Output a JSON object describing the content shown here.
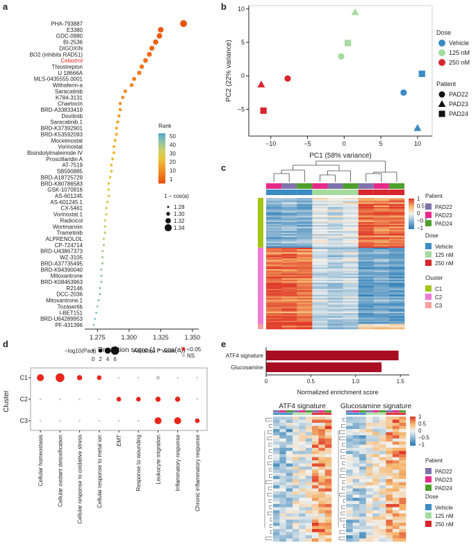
{
  "figure": {
    "panel_labels": [
      "a",
      "b",
      "c",
      "d",
      "e"
    ]
  },
  "chart_data": [
    {
      "panel": "a",
      "type": "scatter",
      "xlabel": "Prediction score (1 − cos(a))",
      "xlim": [
        1.265,
        1.355
      ],
      "xticks": [
        "1.275",
        "1.300",
        "1.325",
        "1.350"
      ],
      "xtick_values": [
        1.275,
        1.3,
        1.325,
        1.35
      ],
      "compounds": [
        "PHA-793887",
        "E3380",
        "GDC-0980",
        "BI-2536",
        "DIGOXIN",
        "BO2 (inhibits RAD51)",
        "Celastrol",
        "Thiostrepton",
        "U 18666A",
        "MLS-0435555.0001",
        "Withaferin-a",
        "Saracatinib",
        "K784-3131",
        "Chaetocin",
        "BRD-A33833419",
        "Dovitinib",
        "Saracatinib.1",
        "BRD-K37392901",
        "BRD-K53592093",
        "Mocetinostat",
        "Vorinostat",
        "Bisindolylmaleimide IV",
        "Proscillaridin A",
        "AT-7519",
        "SB590885",
        "BRD-A18725729",
        "BRD-K80786583",
        "GSK-1070916",
        "AS-601245",
        "AS-601245.1",
        "CX-5461",
        "Vorinostat.1",
        "Radicicol",
        "Wortmannin",
        "Trametinib",
        "ALPRENOLOL",
        "CP-724714",
        "BRD-U43867373",
        "WZ-3105",
        "BRD-A37735495",
        "BRD-K94390040",
        "Mitoxantrone",
        "BRD-K08463963",
        "R2146",
        "DCC-2036",
        "Mitoxantrone.1",
        "Tozasertib",
        "I-BET151",
        "BRD-U64289953",
        "PF-431396"
      ],
      "values": [
        1.343,
        1.325,
        1.324,
        1.321,
        1.318,
        1.316,
        1.313,
        1.31,
        1.308,
        1.304,
        1.302,
        1.297,
        1.295,
        1.293,
        1.293,
        1.292,
        1.291,
        1.29,
        1.29,
        1.289,
        1.288,
        1.288,
        1.287,
        1.286,
        1.286,
        1.285,
        1.284,
        1.284,
        1.284,
        1.283,
        1.282,
        1.282,
        1.281,
        1.281,
        1.281,
        1.28,
        1.28,
        1.279,
        1.279,
        1.279,
        1.278,
        1.278,
        1.278,
        1.277,
        1.277,
        1.276,
        1.275,
        1.274,
        1.273,
        1.272
      ],
      "highlight": "Celastrol",
      "highlight_color": "#e8261c",
      "rank_legend_title": "Rank",
      "rank_ticks": [
        "50",
        "40",
        "30",
        "20",
        "10",
        "1"
      ],
      "rank_colors": [
        "#5aa9c4",
        "#9cc7a0",
        "#d9cf58",
        "#f0b030",
        "#f07b1c",
        "#e85a14"
      ],
      "size_legend_title": "1 − cos(a)",
      "size_legend": [
        "1.28",
        "1.30",
        "1.32",
        "1.34"
      ]
    },
    {
      "panel": "b",
      "type": "scatter",
      "xlabel": "PC1 (58% variance)",
      "ylabel": "PC2 (22% variance)",
      "xlim": [
        -13,
        12
      ],
      "ylim": [
        -9,
        10.5
      ],
      "xticks": [
        -10,
        -5,
        0,
        5,
        10
      ],
      "yticks": [
        -5,
        0,
        5,
        10
      ],
      "dose_legend_title": "Dose",
      "dose_legend": [
        {
          "label": "Vehicle",
          "color": "#3a8bc2"
        },
        {
          "label": "125 nM",
          "color": "#a6dba0"
        },
        {
          "label": "250 nM",
          "color": "#d7262e"
        }
      ],
      "patient_legend_title": "Patient",
      "patient_legend": [
        {
          "label": "PAD22",
          "shape": "circle"
        },
        {
          "label": "PAD23",
          "shape": "triangle"
        },
        {
          "label": "PAD24",
          "shape": "square"
        }
      ],
      "points": [
        {
          "x": 1.5,
          "y": 9.5,
          "dose": "125 nM",
          "patient": "PAD23"
        },
        {
          "x": 0.5,
          "y": 4.9,
          "dose": "125 nM",
          "patient": "PAD24"
        },
        {
          "x": -0.4,
          "y": 2.9,
          "dose": "125 nM",
          "patient": "PAD22"
        },
        {
          "x": -7.7,
          "y": -0.4,
          "dose": "250 nM",
          "patient": "PAD22"
        },
        {
          "x": -11.3,
          "y": -1.3,
          "dose": "250 nM",
          "patient": "PAD23"
        },
        {
          "x": -11.0,
          "y": -5.2,
          "dose": "250 nM",
          "patient": "PAD24"
        },
        {
          "x": 8.1,
          "y": -2.5,
          "dose": "Vehicle",
          "patient": "PAD22"
        },
        {
          "x": 10.6,
          "y": 0.3,
          "dose": "Vehicle",
          "patient": "PAD24"
        },
        {
          "x": 10.0,
          "y": -7.8,
          "dose": "Vehicle",
          "patient": "PAD23"
        }
      ]
    },
    {
      "panel": "c",
      "type": "heatmap",
      "color_scale": {
        "ticks": [
          "1",
          "0.5",
          "0",
          "−0.5",
          "−1"
        ],
        "low": "#2f7fb8",
        "mid": "#f7f7f7",
        "high": "#e0402a"
      },
      "columns": [
        {
          "patient": "PAD23",
          "dose": "Vehicle"
        },
        {
          "patient": "PAD22",
          "dose": "Vehicle"
        },
        {
          "patient": "PAD24",
          "dose": "Vehicle"
        },
        {
          "patient": "PAD23",
          "dose": "125 nM"
        },
        {
          "patient": "PAD22",
          "dose": "125 nM"
        },
        {
          "patient": "PAD24",
          "dose": "125 nM"
        },
        {
          "patient": "PAD22",
          "dose": "250 nM"
        },
        {
          "patient": "PAD23",
          "dose": "250 nM"
        },
        {
          "patient": "PAD24",
          "dose": "250 nM"
        }
      ],
      "clusters": [
        {
          "name": "C1",
          "fraction": 0.38,
          "pattern": [
            -0.6,
            -0.5,
            -0.6,
            -0.1,
            -0.2,
            -0.1,
            0.8,
            0.7,
            0.8
          ]
        },
        {
          "name": "C2",
          "fraction": 0.58,
          "pattern": [
            0.8,
            0.8,
            0.7,
            -0.2,
            -0.3,
            -0.2,
            -0.7,
            -0.6,
            -0.7
          ]
        },
        {
          "name": "C3",
          "fraction": 0.04,
          "pattern": [
            0.9,
            0.7,
            0.9,
            -0.3,
            -0.5,
            -0.3,
            0.2,
            0.1,
            0.2
          ]
        }
      ],
      "patient_legend_title": "Patient",
      "patient_legend": [
        {
          "label": "PAD22",
          "color": "#8073ac"
        },
        {
          "label": "PAD23",
          "color": "#e7298a"
        },
        {
          "label": "PAD24",
          "color": "#4da02c"
        }
      ],
      "dose_legend_title": "Dose",
      "dose_legend": [
        {
          "label": "Vehicle",
          "color": "#3a8bc2"
        },
        {
          "label": "125 nM",
          "color": "#a6dba0"
        },
        {
          "label": "250 nM",
          "color": "#d7262e"
        }
      ],
      "cluster_legend_title": "Cluster",
      "cluster_legend": [
        {
          "label": "C1",
          "color": "#a3c614"
        },
        {
          "label": "C2",
          "color": "#f07bd7"
        },
        {
          "label": "C3",
          "color": "#f4a0a0"
        }
      ]
    },
    {
      "panel": "d",
      "type": "scatter",
      "ylabel": "Cluster",
      "rows": [
        "C1",
        "C2",
        "C3"
      ],
      "terms": [
        "Cellular homeostasis",
        "Cellular oxidant detoxification",
        "Cellular response to oxidative stress",
        "Cellular response to metal ion",
        "EMT",
        "Response to wounding",
        "Leukocyte migration",
        "Inflammatory response",
        "Chronic inflammatory response"
      ],
      "size_legend_title": "−log10(Padj)",
      "size_legend": [
        "0",
        "2",
        "4",
        "6"
      ],
      "sig_legend_title": "Adjusted P value",
      "sig_legend": [
        {
          "label": "<0.05",
          "color": "#e8261c"
        },
        {
          "label": "NS",
          "color": "#cccccc"
        }
      ],
      "cells": [
        {
          "row": "C1",
          "term": 0,
          "padj": 4.5,
          "sig": true
        },
        {
          "row": "C1",
          "term": 1,
          "padj": 6.0,
          "sig": true
        },
        {
          "row": "C1",
          "term": 2,
          "padj": 3.0,
          "sig": true
        },
        {
          "row": "C1",
          "term": 3,
          "padj": 2.5,
          "sig": true
        },
        {
          "row": "C1",
          "term": 4,
          "padj": 0.2,
          "sig": false
        },
        {
          "row": "C1",
          "term": 5,
          "padj": 0.2,
          "sig": false
        },
        {
          "row": "C1",
          "term": 6,
          "padj": 2.0,
          "sig": false
        },
        {
          "row": "C1",
          "term": 7,
          "padj": 0.2,
          "sig": false
        },
        {
          "row": "C1",
          "term": 8,
          "padj": 0.2,
          "sig": false
        },
        {
          "row": "C2",
          "term": 0,
          "padj": 0.2,
          "sig": false
        },
        {
          "row": "C2",
          "term": 1,
          "padj": 0.2,
          "sig": false
        },
        {
          "row": "C2",
          "term": 2,
          "padj": 0.2,
          "sig": false
        },
        {
          "row": "C2",
          "term": 3,
          "padj": 0.2,
          "sig": false
        },
        {
          "row": "C2",
          "term": 4,
          "padj": 2.5,
          "sig": true
        },
        {
          "row": "C2",
          "term": 5,
          "padj": 2.5,
          "sig": true
        },
        {
          "row": "C2",
          "term": 6,
          "padj": 3.0,
          "sig": true
        },
        {
          "row": "C2",
          "term": 7,
          "padj": 3.0,
          "sig": true
        },
        {
          "row": "C2",
          "term": 8,
          "padj": 0.2,
          "sig": false
        },
        {
          "row": "C3",
          "term": 0,
          "padj": 0.2,
          "sig": false
        },
        {
          "row": "C3",
          "term": 1,
          "padj": 0.2,
          "sig": false
        },
        {
          "row": "C3",
          "term": 2,
          "padj": 0.2,
          "sig": false
        },
        {
          "row": "C3",
          "term": 3,
          "padj": 0.2,
          "sig": false
        },
        {
          "row": "C3",
          "term": 4,
          "padj": 0.2,
          "sig": false
        },
        {
          "row": "C3",
          "term": 5,
          "padj": 0.2,
          "sig": false
        },
        {
          "row": "C3",
          "term": 6,
          "padj": 4.5,
          "sig": true
        },
        {
          "row": "C3",
          "term": 7,
          "padj": 4.5,
          "sig": true
        },
        {
          "row": "C3",
          "term": 8,
          "padj": 2.5,
          "sig": true
        }
      ]
    },
    {
      "panel": "e",
      "type": "bar",
      "categories": [
        "ATF4 signature",
        "Glucosamine"
      ],
      "values": [
        1.48,
        1.29
      ],
      "xlabel": "Normalized enrichment score",
      "xlim": [
        0,
        1.6
      ],
      "xticks": [
        "0",
        "0.5",
        "1.0",
        "1.5"
      ],
      "xtick_values": [
        0,
        0.5,
        1.0,
        1.5
      ],
      "bar_color": "#a80d22",
      "heatmaps": [
        {
          "title": "ATF4 signature",
          "rows": 40
        },
        {
          "title": "Glucosamine signature",
          "rows": 40
        }
      ],
      "color_scale": {
        "ticks": [
          "1",
          "0.5",
          "0",
          "−0.5",
          "−1"
        ]
      },
      "patient_legend_title": "Patient",
      "patient_legend": [
        {
          "label": "PAD22",
          "color": "#8073ac"
        },
        {
          "label": "PAD23",
          "color": "#e7298a"
        },
        {
          "label": "PAD24",
          "color": "#4da02c"
        }
      ],
      "dose_legend_title": "Dose",
      "dose_legend": [
        {
          "label": "Vehicle",
          "color": "#3a8bc2"
        },
        {
          "label": "125 nM",
          "color": "#a6dba0"
        },
        {
          "label": "250 nM",
          "color": "#d7262e"
        }
      ]
    }
  ]
}
